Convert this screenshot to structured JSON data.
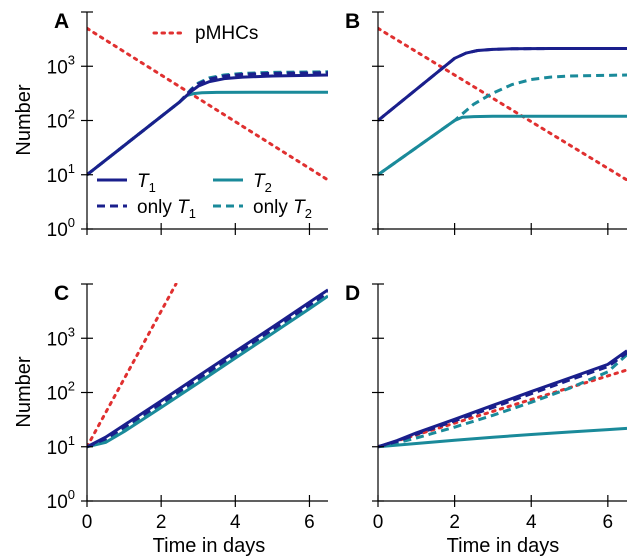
{
  "chart_data": [
    {
      "panel": "A",
      "type": "line",
      "xlim": [
        0,
        6.5
      ],
      "ylim_log10": [
        0,
        4
      ],
      "scale_y": "log",
      "ylabel": "Number",
      "xlabel": "",
      "show_y_tick_labels": true,
      "show_x_tick_labels": false,
      "series": [
        {
          "key": "pMHCs",
          "style": "dotted",
          "color": "#e03030",
          "x": [
            0,
            6.5
          ],
          "y": [
            5000,
            8
          ]
        },
        {
          "key": "T1",
          "style": "solid",
          "color": "#1a1f8c",
          "x": [
            0,
            2.5,
            2.8,
            3.0,
            3.3,
            3.7,
            4.2,
            5.0,
            6.5
          ],
          "y": [
            10,
            220,
            340,
            430,
            520,
            590,
            630,
            660,
            690
          ]
        },
        {
          "key": "only_T1",
          "style": "dashed",
          "color": "#1a1f8c",
          "x": [
            0,
            2.5,
            2.8,
            3.0,
            3.3,
            3.7,
            4.2,
            5.0,
            6.5
          ],
          "y": [
            10,
            220,
            360,
            470,
            580,
            660,
            710,
            740,
            760
          ]
        },
        {
          "key": "T2",
          "style": "solid",
          "color": "#1a8a9a",
          "x": [
            0,
            2.5,
            2.7,
            2.9,
            3.1,
            3.5,
            4.5,
            6.5
          ],
          "y": [
            10,
            220,
            290,
            315,
            325,
            330,
            332,
            332
          ]
        },
        {
          "key": "only_T2",
          "style": "dashed",
          "color": "#1a8a9a",
          "x": [
            0,
            2.5,
            2.8,
            3.0,
            3.3,
            3.7,
            4.2,
            5.0,
            6.5
          ],
          "y": [
            10,
            220,
            370,
            490,
            610,
            690,
            740,
            770,
            790
          ]
        }
      ]
    },
    {
      "panel": "B",
      "type": "line",
      "xlim": [
        0,
        6.5
      ],
      "ylim_log10": [
        0,
        4
      ],
      "scale_y": "log",
      "ylabel": "",
      "xlabel": "",
      "show_y_tick_labels": false,
      "show_x_tick_labels": false,
      "series": [
        {
          "key": "pMHCs",
          "style": "dotted",
          "color": "#e03030",
          "x": [
            0,
            6.5
          ],
          "y": [
            5000,
            8
          ]
        },
        {
          "key": "T1",
          "style": "solid",
          "color": "#1a1f8c",
          "x": [
            0,
            2.0,
            2.3,
            2.6,
            3.0,
            3.5,
            4.5,
            6.5
          ],
          "y": [
            100,
            1400,
            1750,
            1950,
            2050,
            2100,
            2120,
            2130
          ]
        },
        {
          "key": "only_T1",
          "style": "dashed",
          "color": "#1a1f8c",
          "x": [
            0,
            2.0,
            2.3,
            2.6,
            3.0,
            3.5,
            4.5,
            6.5
          ],
          "y": [
            100,
            1400,
            1750,
            1950,
            2050,
            2100,
            2120,
            2130
          ]
        },
        {
          "key": "T2",
          "style": "solid",
          "color": "#1a8a9a",
          "x": [
            0,
            2.0,
            2.2,
            2.5,
            3.0,
            4.0,
            6.5
          ],
          "y": [
            10,
            100,
            115,
            118,
            120,
            120,
            120
          ]
        },
        {
          "key": "only_T2",
          "style": "dashed",
          "color": "#1a8a9a",
          "x": [
            0,
            2.0,
            2.5,
            3.0,
            3.5,
            4.0,
            4.5,
            5.0,
            6.5
          ],
          "y": [
            10,
            100,
            200,
            320,
            460,
            570,
            630,
            660,
            690
          ]
        }
      ]
    },
    {
      "panel": "C",
      "type": "line",
      "xlim": [
        0,
        6.5
      ],
      "ylim_log10": [
        0,
        4
      ],
      "scale_y": "log",
      "ylabel": "Number",
      "xlabel": "Time in days",
      "show_y_tick_labels": true,
      "show_x_tick_labels": true,
      "series": [
        {
          "key": "pMHCs",
          "style": "dotted",
          "color": "#e03030",
          "x": [
            0,
            2.4
          ],
          "y": [
            10,
            10000
          ]
        },
        {
          "key": "T1",
          "style": "solid",
          "color": "#1a1f8c",
          "x": [
            0,
            0.5,
            1,
            2,
            3,
            4,
            5,
            6,
            6.5
          ],
          "y": [
            10,
            15,
            25,
            70,
            200,
            570,
            1600,
            4600,
            7800
          ]
        },
        {
          "key": "only_T1",
          "style": "dashed",
          "color": "#1a1f8c",
          "x": [
            0,
            0.5,
            1,
            2,
            3,
            4,
            5,
            6,
            6.5
          ],
          "y": [
            10,
            14,
            23,
            63,
            180,
            510,
            1450,
            4100,
            7000
          ]
        },
        {
          "key": "T2",
          "style": "solid",
          "color": "#1a8a9a",
          "x": [
            0,
            0.5,
            1,
            2,
            3,
            4,
            5,
            6,
            6.5
          ],
          "y": [
            10,
            12,
            19,
            53,
            150,
            430,
            1220,
            3500,
            6000
          ]
        },
        {
          "key": "only_T2",
          "style": "dashed",
          "color": "#1a8a9a",
          "x": [
            0,
            0.5,
            1,
            2,
            3,
            4,
            5,
            6,
            6.5
          ],
          "y": [
            10,
            13,
            21,
            58,
            165,
            470,
            1330,
            3800,
            6500
          ]
        }
      ]
    },
    {
      "panel": "D",
      "type": "line",
      "xlim": [
        0,
        6.5
      ],
      "ylim_log10": [
        0,
        4
      ],
      "scale_y": "log",
      "ylabel": "",
      "xlabel": "Time in days",
      "show_y_tick_labels": false,
      "show_x_tick_labels": true,
      "series": [
        {
          "key": "pMHCs",
          "style": "dotted",
          "color": "#e03030",
          "x": [
            0,
            6.5
          ],
          "y": [
            10,
            260
          ]
        },
        {
          "key": "T1",
          "style": "solid",
          "color": "#1a1f8c",
          "x": [
            0,
            0.5,
            1,
            2,
            3,
            4,
            5,
            6,
            6.5
          ],
          "y": [
            10,
            13,
            18,
            32,
            58,
            104,
            185,
            330,
            590
          ]
        },
        {
          "key": "only_T1",
          "style": "dashed",
          "color": "#1a1f8c",
          "x": [
            0,
            0.5,
            1,
            2,
            3,
            4,
            5,
            6,
            6.5
          ],
          "y": [
            10,
            12.5,
            17,
            30,
            53,
            95,
            170,
            300,
            540
          ]
        },
        {
          "key": "T2",
          "style": "solid",
          "color": "#1a8a9a",
          "x": [
            0,
            1,
            2,
            3,
            4,
            5,
            6,
            6.5
          ],
          "y": [
            10,
            11.5,
            13.2,
            15,
            16.8,
            18.7,
            20.7,
            21.8
          ]
        },
        {
          "key": "only_T2",
          "style": "dashed",
          "color": "#1a8a9a",
          "x": [
            0,
            0.5,
            1,
            2,
            3,
            4,
            5,
            6,
            6.5
          ],
          "y": [
            10,
            11.8,
            14.5,
            23,
            38,
            66,
            120,
            240,
            500
          ]
        }
      ]
    }
  ],
  "y_tick_labels": [
    {
      "base": "10",
      "exp": "0"
    },
    {
      "base": "10",
      "exp": "1"
    },
    {
      "base": "10",
      "exp": "2"
    },
    {
      "base": "10",
      "exp": "3"
    }
  ],
  "x_tick_labels": [
    "0",
    "2",
    "4",
    "6"
  ],
  "x_ticks": [
    0,
    2,
    4,
    6
  ],
  "legend": {
    "pmhcs": "pMHCs",
    "t1_sym": "T",
    "t1_sub": "1",
    "t2_sym": "T",
    "t2_sub": "2",
    "only_t1_prefix": "only ",
    "only_t1_sym": "T",
    "only_t1_sub": "1",
    "only_t2_prefix": "only ",
    "only_t2_sym": "T",
    "only_t2_sub": "2"
  },
  "colors": {
    "t1": "#1a1f8c",
    "t2": "#1a8a9a",
    "pmhcs": "#e03030"
  }
}
